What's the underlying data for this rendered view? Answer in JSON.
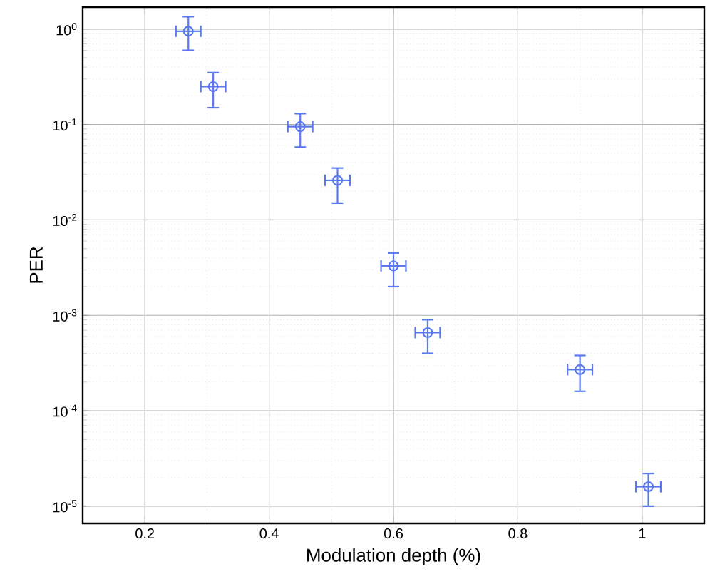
{
  "chart_data": {
    "type": "scatter",
    "xlabel": "Modulation depth (%)",
    "ylabel": "PER",
    "log": "y",
    "grid": true,
    "marker": "circle",
    "xlim": [
      0.1,
      1.1
    ],
    "xticks": [
      0.2,
      0.4,
      0.6,
      0.8,
      1
    ],
    "ylim": [
      6.6e-06,
      1.7
    ],
    "yticks": [
      {
        "value": 1e-05,
        "label": "10$^{-5}$"
      },
      {
        "value": 0.0001,
        "label": "10$^{-4}$"
      },
      {
        "value": 0.001,
        "label": "10$^{-3}$"
      },
      {
        "value": 0.01,
        "label": "10$^{-2}$"
      },
      {
        "value": 0.1,
        "label": "10$^{-1}$"
      },
      {
        "value": 1,
        "label": "10$^{0}$"
      }
    ],
    "series": [
      {
        "color": "#5a78f0",
        "x": [
          0.27,
          0.31,
          0.45,
          0.51,
          0.6,
          0.655,
          0.9,
          1.01
        ],
        "values": [
          0.95,
          0.25,
          0.095,
          0.026,
          0.0033,
          0.00066,
          0.00027,
          1.6e-05
        ],
        "errors": [
          [
            0.6,
            1.35
          ],
          [
            0.15,
            0.35
          ],
          [
            0.058,
            0.13
          ],
          [
            0.015,
            0.035
          ],
          [
            0.002,
            0.0045
          ],
          [
            0.0004,
            0.0009
          ],
          [
            0.00016,
            0.00038
          ],
          [
            1e-05,
            2.2e-05
          ]
        ],
        "xerrors": [
          0.02,
          0.02,
          0.02,
          0.02,
          0.02,
          0.02,
          0.02,
          0.02
        ]
      }
    ]
  }
}
